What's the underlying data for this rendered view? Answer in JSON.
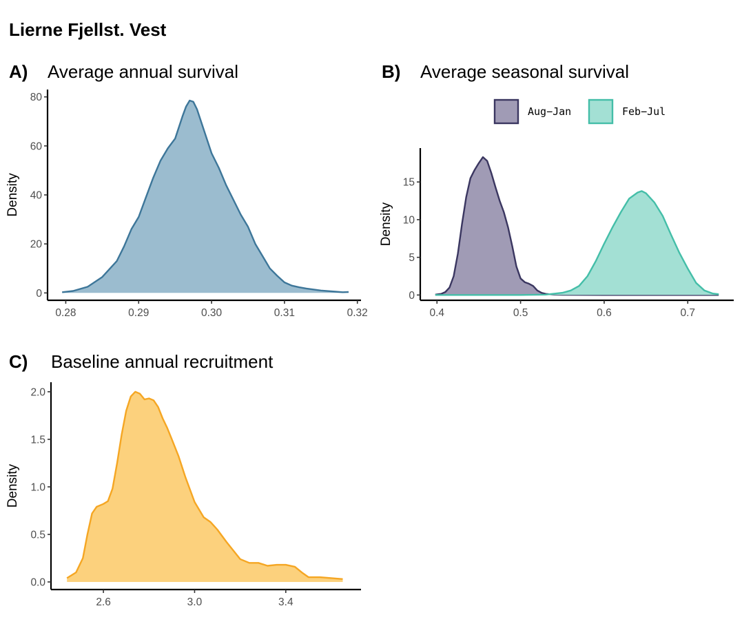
{
  "figure_title": "Lierne Fjellst. Vest",
  "chart_data": [
    {
      "tag": "A)",
      "type": "area",
      "title": "Average annual survival",
      "xlabel": "",
      "ylabel": "Density",
      "xlim": [
        0.2775,
        0.3205
      ],
      "ylim": [
        -3,
        83
      ],
      "xticks": [
        0.28,
        0.29,
        0.3,
        0.31,
        0.32
      ],
      "xticklabels": [
        "0.28",
        "0.29",
        "0.30",
        "0.31",
        "0.32"
      ],
      "yticks": [
        0,
        20,
        40,
        60,
        80
      ],
      "yticklabels": [
        "0",
        "20",
        "40",
        "60",
        "80"
      ],
      "series": [
        {
          "fill": "#9bbccf",
          "stroke": "#3d7699",
          "x": [
            0.2795,
            0.281,
            0.283,
            0.285,
            0.287,
            0.288,
            0.289,
            0.29,
            0.291,
            0.292,
            0.293,
            0.294,
            0.295,
            0.296,
            0.2965,
            0.297,
            0.2975,
            0.298,
            0.299,
            0.3,
            0.301,
            0.302,
            0.303,
            0.304,
            0.305,
            0.306,
            0.307,
            0.308,
            0.309,
            0.31,
            0.311,
            0.312,
            0.313,
            0.315,
            0.317,
            0.318,
            0.3188
          ],
          "y": [
            0.3,
            0.8,
            2.5,
            6.5,
            13,
            19,
            26,
            31,
            39,
            47,
            54,
            59,
            63,
            72,
            76,
            78.5,
            78,
            75,
            66,
            57,
            51,
            44,
            38,
            32,
            27,
            20,
            15,
            10,
            7,
            4.3,
            3,
            2.3,
            1.8,
            1,
            0.5,
            0.3,
            0.4
          ]
        }
      ]
    },
    {
      "tag": "B)",
      "type": "area",
      "title": "Average seasonal survival",
      "xlabel": "",
      "ylabel": "Density",
      "xlim": [
        0.38,
        0.755
      ],
      "ylim": [
        -0.7,
        19.5
      ],
      "xticks": [
        0.4,
        0.5,
        0.6,
        0.7
      ],
      "xticklabels": [
        "0.4",
        "0.5",
        "0.6",
        "0.7"
      ],
      "yticks": [
        0,
        5,
        10,
        15
      ],
      "yticklabels": [
        "0",
        "5",
        "10",
        "15"
      ],
      "legend": {
        "position": "top"
      },
      "series": [
        {
          "name": "Aug−Jan",
          "fill": "#a09bb5",
          "stroke": "#3a3660",
          "x": [
            0.398,
            0.405,
            0.41,
            0.415,
            0.42,
            0.425,
            0.43,
            0.435,
            0.44,
            0.445,
            0.45,
            0.455,
            0.46,
            0.465,
            0.47,
            0.475,
            0.48,
            0.485,
            0.49,
            0.495,
            0.5,
            0.505,
            0.51,
            0.515,
            0.52,
            0.525,
            0.53,
            0.54,
            0.55,
            0.6,
            0.65,
            0.7,
            0.737
          ],
          "y": [
            0.05,
            0.15,
            0.4,
            1.0,
            2.5,
            5.5,
            9.5,
            13,
            15.5,
            16.6,
            17.5,
            18.3,
            17.8,
            16.2,
            14.3,
            12.5,
            11,
            9.0,
            6.5,
            3.8,
            2.2,
            1.7,
            1.5,
            1.2,
            0.6,
            0.3,
            0.15,
            0.05,
            0.02,
            0.0,
            0.0,
            0.0,
            0.0
          ]
        },
        {
          "name": "Feb−Jul",
          "fill": "#a3e0d4",
          "stroke": "#44bea8",
          "x": [
            0.398,
            0.45,
            0.5,
            0.53,
            0.55,
            0.56,
            0.57,
            0.58,
            0.59,
            0.6,
            0.61,
            0.62,
            0.63,
            0.64,
            0.645,
            0.65,
            0.66,
            0.67,
            0.68,
            0.69,
            0.7,
            0.71,
            0.72,
            0.73,
            0.737
          ],
          "y": [
            0.0,
            0.0,
            0.0,
            0.05,
            0.3,
            0.6,
            1.2,
            2.5,
            4.5,
            6.8,
            9.0,
            11.0,
            12.8,
            13.6,
            13.8,
            13.5,
            12.3,
            10.5,
            8.0,
            5.6,
            3.5,
            1.6,
            0.6,
            0.2,
            0.1
          ]
        }
      ]
    },
    {
      "tag": "C)",
      "type": "area",
      "title": "Baseline annual recruitment",
      "xlabel": "",
      "ylabel": "Density",
      "xlim": [
        2.37,
        3.73
      ],
      "ylim": [
        -0.08,
        2.1
      ],
      "xticks": [
        2.6,
        3.0,
        3.4
      ],
      "xticklabels": [
        "2.6",
        "3.0",
        "3.4"
      ],
      "yticks": [
        0.0,
        0.5,
        1.0,
        1.5,
        2.0
      ],
      "yticklabels": [
        "0.0",
        "0.5",
        "1.0",
        "1.5",
        "2.0"
      ],
      "series": [
        {
          "fill": "#fcd17d",
          "stroke": "#f5a623",
          "x": [
            2.44,
            2.48,
            2.51,
            2.53,
            2.55,
            2.57,
            2.6,
            2.62,
            2.64,
            2.66,
            2.68,
            2.7,
            2.72,
            2.74,
            2.76,
            2.78,
            2.8,
            2.82,
            2.84,
            2.86,
            2.88,
            2.9,
            2.93,
            2.96,
            3.0,
            3.04,
            3.07,
            3.1,
            3.14,
            3.17,
            3.2,
            3.24,
            3.28,
            3.32,
            3.36,
            3.4,
            3.44,
            3.47,
            3.5,
            3.55,
            3.6,
            3.65
          ],
          "y": [
            0.04,
            0.1,
            0.25,
            0.5,
            0.72,
            0.79,
            0.82,
            0.85,
            0.98,
            1.25,
            1.55,
            1.8,
            1.95,
            2.0,
            1.98,
            1.92,
            1.93,
            1.91,
            1.84,
            1.72,
            1.62,
            1.5,
            1.32,
            1.1,
            0.84,
            0.68,
            0.63,
            0.55,
            0.42,
            0.33,
            0.24,
            0.2,
            0.2,
            0.17,
            0.18,
            0.18,
            0.16,
            0.1,
            0.05,
            0.05,
            0.04,
            0.03
          ]
        }
      ]
    }
  ]
}
